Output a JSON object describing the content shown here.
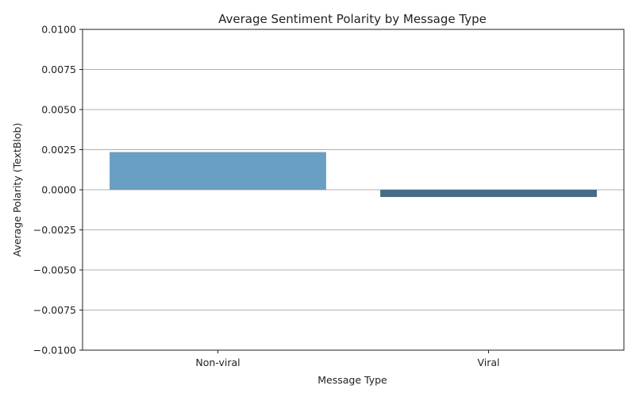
{
  "chart_data": {
    "type": "bar",
    "title": "Average Sentiment Polarity by Message Type",
    "xlabel": "Message Type",
    "ylabel": "Average Polarity (TextBlob)",
    "categories": [
      "Non-viral",
      "Viral"
    ],
    "values": [
      0.00235,
      -0.00045
    ],
    "ylim": [
      -0.01,
      0.01
    ],
    "yticks": [
      -0.01,
      -0.0075,
      -0.005,
      -0.0025,
      0.0,
      0.0025,
      0.005,
      0.0075,
      0.01
    ],
    "ytick_labels": [
      "−0.0100",
      "−0.0075",
      "−0.0050",
      "−0.0025",
      "0.0000",
      "0.0025",
      "0.0050",
      "0.0075",
      "0.0100"
    ],
    "grid": "y",
    "colors": [
      "#6a9fc4",
      "#456b87"
    ]
  }
}
